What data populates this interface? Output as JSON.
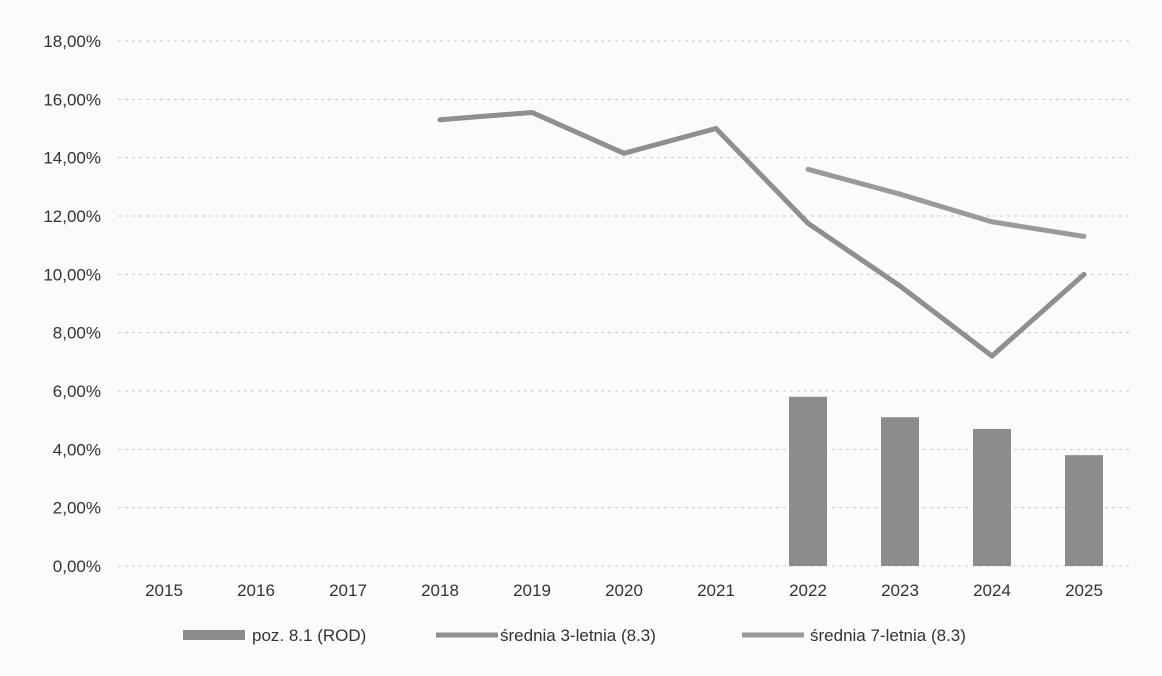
{
  "chart_data": {
    "type": "bar",
    "categories": [
      "2015",
      "2016",
      "2017",
      "2018",
      "2019",
      "2020",
      "2021",
      "2022",
      "2023",
      "2024",
      "2025"
    ],
    "ylim": [
      0,
      18
    ],
    "y_ticks": [
      0,
      2,
      4,
      6,
      8,
      10,
      12,
      14,
      16,
      18
    ],
    "y_tick_labels": [
      "0,00%",
      "2,00%",
      "4,00%",
      "6,00%",
      "8,00%",
      "10,00%",
      "12,00%",
      "14,00%",
      "16,00%",
      "18,00%"
    ],
    "grid": true,
    "legend_position": "bottom",
    "series": [
      {
        "name": "poz. 8.1 (ROD)",
        "kind": "bar",
        "color": "#8c8c8c",
        "values": [
          null,
          null,
          null,
          null,
          null,
          null,
          null,
          5.8,
          5.1,
          4.7,
          3.8
        ]
      },
      {
        "name": "średnia 3-letnia (8.3)",
        "kind": "line",
        "color": "#8f8f8f",
        "values": [
          null,
          null,
          null,
          15.3,
          15.55,
          14.15,
          15.0,
          11.75,
          9.6,
          7.2,
          10.0
        ]
      },
      {
        "name": "średnia 7-letnia (8.3)",
        "kind": "line",
        "color": "#9a9a9a",
        "values": [
          null,
          null,
          null,
          null,
          null,
          null,
          null,
          13.6,
          12.75,
          11.8,
          11.3
        ]
      }
    ]
  }
}
